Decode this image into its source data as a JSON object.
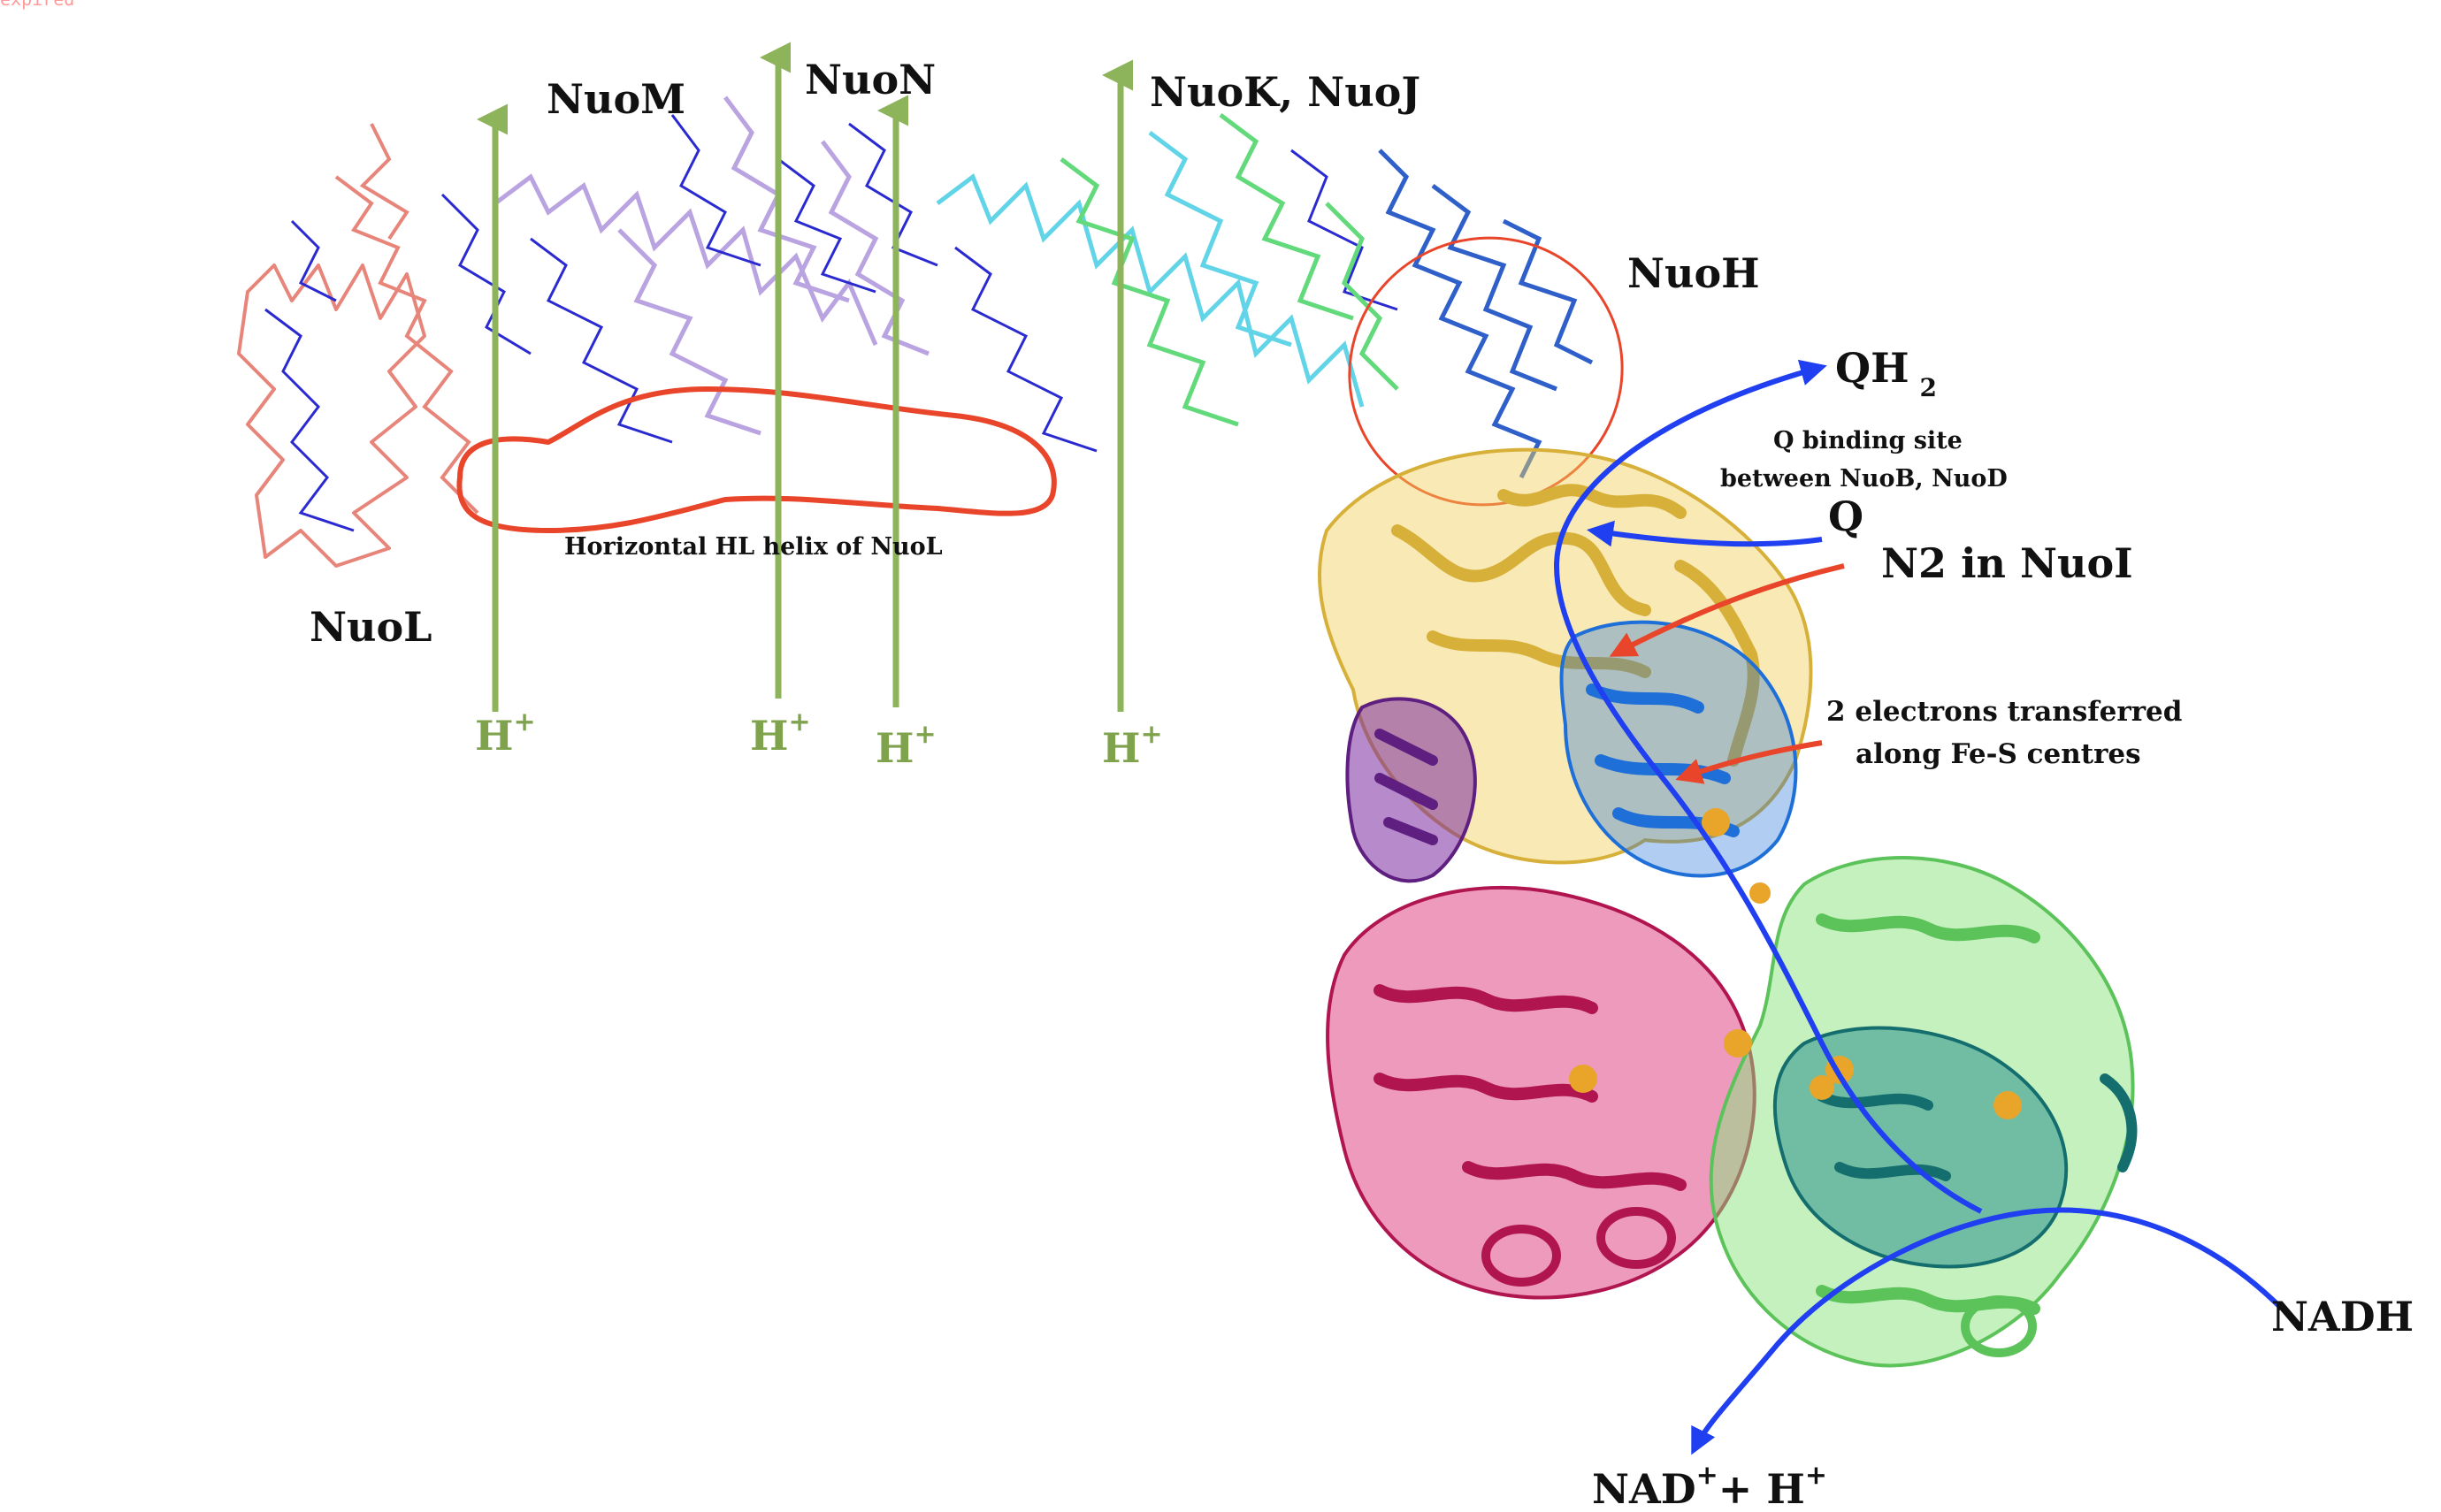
{
  "corner_text": "expired",
  "subunits": {
    "nuoL": "NuoL",
    "nuoM": "NuoM",
    "nuoN": "NuoN",
    "nuoKJ": "NuoK, NuoJ",
    "nuoH": "NuoH"
  },
  "helix_label": "Horizontal HL helix of NuoL",
  "proton": {
    "base": "H",
    "sup": "+"
  },
  "qh2": {
    "base": "QH",
    "sub": "2"
  },
  "q_site": {
    "line1": "Q binding site",
    "line2": "between NuoB, NuoD"
  },
  "q": "Q",
  "n2": "N2 in NuoI",
  "electrons": {
    "line1": "2 electrons transferred",
    "line2": "along Fe-S centres"
  },
  "nadh": "NADH",
  "nad": {
    "base": "NAD",
    "sup": "+",
    "plus": "+ H",
    "sup2": "+"
  },
  "colors": {
    "proton_arrow": "#8db45a",
    "electron_path": "#1f3ff0",
    "annotation_red": "#e8452a",
    "nuoL": "#e8857a",
    "nuoM": "#b9a3e0",
    "nuoKJ": "#62d4e8",
    "nuoKJ_green": "#62d97a",
    "nuoH": "#2f5fc9",
    "backbone": "#2a2ad0",
    "yellow_domain": "#f2d05a",
    "pink_domain": "#d81f6a",
    "light_green_domain": "#8be47e",
    "teal_domain": "#1e8a8a",
    "purple_domain": "#7a2aa0",
    "blue_domain": "#1f6fd8",
    "fe_s": "#e8a52a"
  }
}
